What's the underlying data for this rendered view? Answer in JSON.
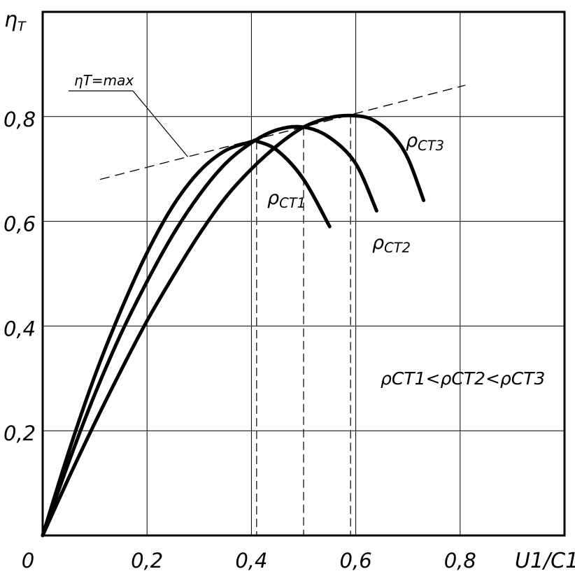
{
  "chart_data": {
    "type": "line",
    "xlabel": "U1/C1",
    "ylabel": "ηT",
    "xlim": [
      0,
      1.0
    ],
    "ylim": [
      0,
      1.0
    ],
    "x_ticks": [
      "0",
      "0,2",
      "0,4",
      "0,6",
      "0,8"
    ],
    "y_ticks": [
      "0,2",
      "0,4",
      "0,6",
      "0,8"
    ],
    "grid": true,
    "series": [
      {
        "name": "ρСТ1",
        "x": [
          0,
          0.05,
          0.1,
          0.15,
          0.2,
          0.25,
          0.3,
          0.35,
          0.4,
          0.41,
          0.45,
          0.5,
          0.55
        ],
        "y": [
          0,
          0.16,
          0.305,
          0.43,
          0.54,
          0.63,
          0.695,
          0.735,
          0.752,
          0.753,
          0.735,
          0.68,
          0.59
        ]
      },
      {
        "name": "ρСТ2",
        "x": [
          0,
          0.05,
          0.1,
          0.15,
          0.2,
          0.25,
          0.3,
          0.35,
          0.4,
          0.45,
          0.5,
          0.55,
          0.6,
          0.64
        ],
        "y": [
          0,
          0.14,
          0.27,
          0.385,
          0.485,
          0.575,
          0.65,
          0.71,
          0.75,
          0.775,
          0.78,
          0.76,
          0.71,
          0.62
        ]
      },
      {
        "name": "ρСТ3",
        "x": [
          0,
          0.05,
          0.1,
          0.15,
          0.2,
          0.25,
          0.3,
          0.35,
          0.4,
          0.45,
          0.5,
          0.55,
          0.59,
          0.63,
          0.67,
          0.7,
          0.73
        ],
        "y": [
          0,
          0.11,
          0.215,
          0.315,
          0.41,
          0.495,
          0.575,
          0.645,
          0.7,
          0.745,
          0.78,
          0.798,
          0.802,
          0.795,
          0.765,
          0.72,
          0.64
        ]
      }
    ],
    "max_line": {
      "label": "ηT=max",
      "x": [
        0.11,
        0.81
      ],
      "y": [
        0.68,
        0.86
      ]
    },
    "optimum_x": [
      0.41,
      0.5,
      0.59
    ],
    "annotation": "ρСТ1<ρСТ2<ρСТ3"
  }
}
